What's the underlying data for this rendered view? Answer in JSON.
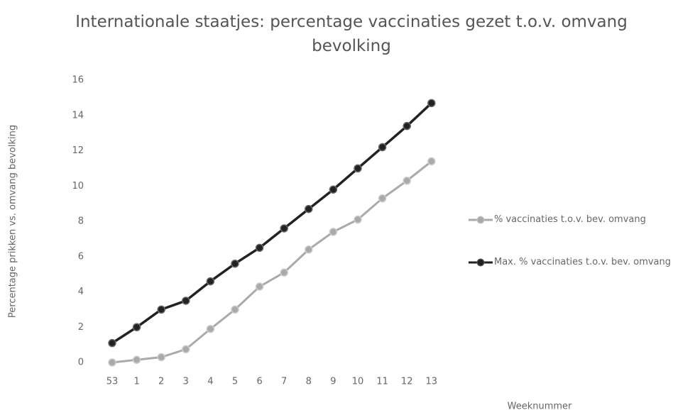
{
  "chart_data": {
    "type": "line",
    "title": "Internationale staatjes: percentage vaccinaties gezet  t.o.v. omvang bevolking",
    "x_label": "Weeknummer",
    "y_label": "Percentage prikken vs. omvang bevolking",
    "categories": [
      "53",
      "1",
      "2",
      "3",
      "4",
      "5",
      "6",
      "7",
      "8",
      "9",
      "10",
      "11",
      "12",
      "13"
    ],
    "series": [
      {
        "name": "% vaccinaties t.o.v. bev. omvang",
        "color": "#aaaaaa",
        "values": [
          0,
          0.15,
          0.3,
          0.75,
          1.9,
          3.0,
          4.3,
          5.1,
          6.4,
          7.4,
          8.1,
          9.3,
          10.3,
          11.4
        ]
      },
      {
        "name": "Max. % vaccinaties t.o.v. bev. omvang",
        "color": "#222222",
        "values": [
          1.1,
          2.0,
          3.0,
          3.5,
          4.6,
          5.6,
          6.5,
          7.6,
          8.7,
          9.8,
          11.0,
          12.2,
          13.4,
          14.7
        ]
      }
    ],
    "ylim": [
      0,
      16
    ],
    "yticks": [
      0,
      2,
      4,
      6,
      8,
      10,
      12,
      14,
      16
    ],
    "grid": false,
    "legend": "right"
  }
}
